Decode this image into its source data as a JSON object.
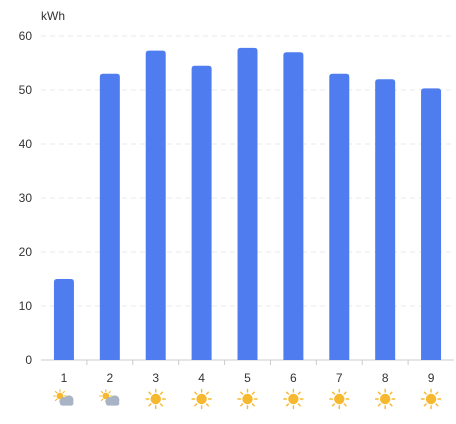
{
  "chart_data": {
    "type": "bar",
    "unit_label": "kWh",
    "categories": [
      "1",
      "2",
      "3",
      "4",
      "5",
      "6",
      "7",
      "8",
      "9"
    ],
    "values": [
      15,
      53,
      57.3,
      54.5,
      57.8,
      57,
      53,
      52,
      50.3
    ],
    "ylim": [
      0,
      60
    ],
    "y_ticks": [
      "0",
      "10",
      "20",
      "30",
      "40",
      "50",
      "60"
    ],
    "y_tick_values": [
      0,
      10,
      20,
      30,
      40,
      50,
      60
    ],
    "grid": "dashed horizontal",
    "weather_icons": [
      "partly-cloudy-icon",
      "partly-cloudy-icon",
      "sunny-icon",
      "sunny-icon",
      "sunny-icon",
      "sunny-icon",
      "sunny-icon",
      "sunny-icon",
      "sunny-icon"
    ]
  },
  "colors": {
    "bar": "#4f7df0",
    "grid": "#e9e9e9",
    "axis": "#cccccc",
    "sun": "#f5b82e",
    "cloud": "#a9b3c6"
  }
}
